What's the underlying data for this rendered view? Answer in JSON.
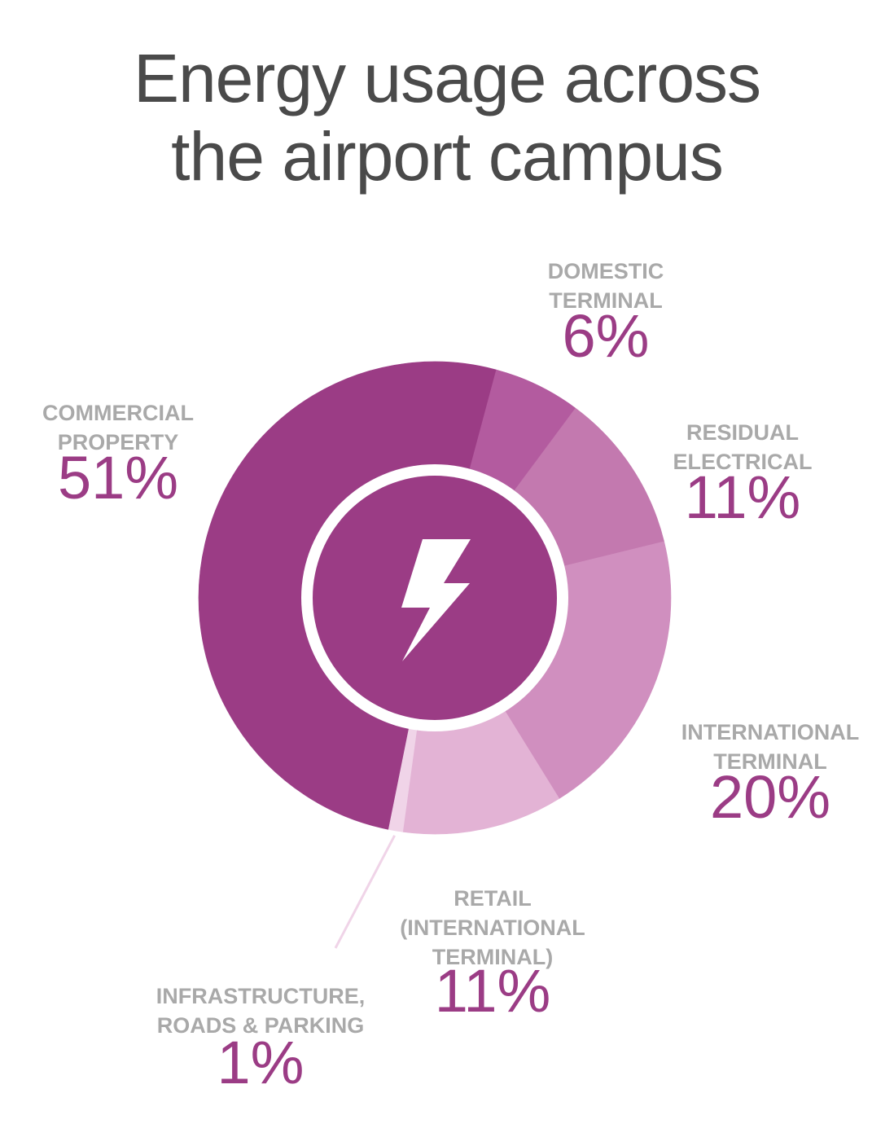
{
  "title": {
    "line1": "Energy usage across",
    "line2": "the airport campus"
  },
  "colors": {
    "title": "#4a4a4a",
    "label": "#a9a9a9",
    "percent": "#9b3c85",
    "center": "#9b3c85",
    "bolt": "#ffffff"
  },
  "center_icon": "lightning-bolt-icon",
  "chart_data": {
    "type": "pie",
    "style": "donut",
    "start_angle_deg": 15,
    "direction": "clockwise",
    "slices": [
      {
        "name_lines": [
          "DOMESTIC",
          "TERMINAL"
        ],
        "percent_label": "6%",
        "value": 6,
        "color": "#b35b9f"
      },
      {
        "name_lines": [
          "RESIDUAL",
          "ELECTRICAL"
        ],
        "percent_label": "11%",
        "value": 11,
        "color": "#c379af"
      },
      {
        "name_lines": [
          "INTERNATIONAL",
          "TERMINAL"
        ],
        "percent_label": "20%",
        "value": 20,
        "color": "#d08fbf"
      },
      {
        "name_lines": [
          "RETAIL",
          "(INTERNATIONAL",
          "TERMINAL)"
        ],
        "percent_label": "11%",
        "value": 11,
        "color": "#e3b3d5"
      },
      {
        "name_lines": [
          "INFRASTRUCTURE,",
          "ROADS & PARKING"
        ],
        "percent_label": "1%",
        "value": 1,
        "color": "#f0d4e8"
      },
      {
        "name_lines": [
          "COMMERCIAL",
          "PROPERTY"
        ],
        "percent_label": "51%",
        "value": 51,
        "color": "#9b3c85"
      }
    ]
  }
}
